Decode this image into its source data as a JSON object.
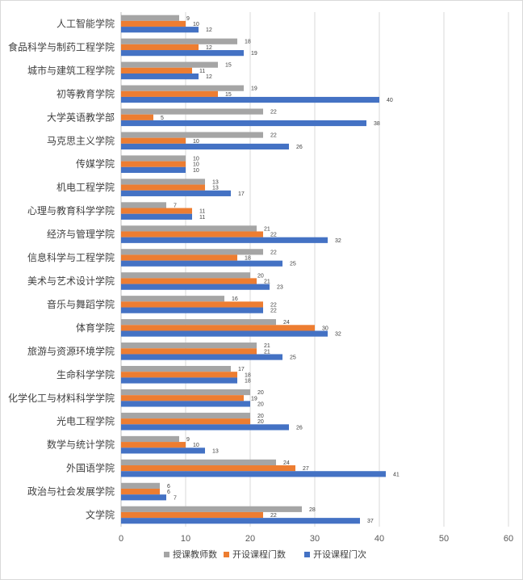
{
  "chart_data": {
    "type": "bar",
    "orientation": "horizontal",
    "categories": [
      "人工智能学院",
      "食品科学与制药工程学院",
      "城市与建筑工程学院",
      "初等教育学院",
      "大学英语教学部",
      "马克思主义学院",
      "传媒学院",
      "机电工程学院",
      "心理与教育科学学院",
      "经济与管理学院",
      "信息科学与工程学院",
      "美术与艺术设计学院",
      "音乐与舞蹈学院",
      "体育学院",
      "旅游与资源环境学院",
      "生命科学学院",
      "化学化工与材料科学学院",
      "光电工程学院",
      "数学与统计学院",
      "外国语学院",
      "政治与社会发展学院",
      "文学院"
    ],
    "series": [
      {
        "name": "授课教师数",
        "color": "#a5a5a5",
        "values": [
          9,
          18,
          15,
          19,
          22,
          22,
          10,
          13,
          7,
          21,
          22,
          20,
          16,
          24,
          21,
          17,
          20,
          20,
          9,
          24,
          6,
          28
        ]
      },
      {
        "name": "开设课程门数",
        "color": "#ed7d31",
        "values": [
          10,
          12,
          11,
          15,
          5,
          10,
          10,
          13,
          11,
          22,
          18,
          21,
          22,
          30,
          21,
          18,
          19,
          20,
          10,
          27,
          6,
          22
        ]
      },
      {
        "name": "开设课程门次",
        "color": "#4472c4",
        "values": [
          12,
          19,
          12,
          40,
          38,
          26,
          10,
          17,
          11,
          32,
          25,
          23,
          22,
          32,
          25,
          18,
          20,
          26,
          13,
          41,
          7,
          37
        ]
      }
    ],
    "x_ticks": [
      "0",
      "10",
      "20",
      "30",
      "40",
      "50",
      "60"
    ],
    "xlim": [
      0,
      60
    ],
    "grid": true,
    "legend_position": "bottom",
    "title": "",
    "xlabel": "",
    "ylabel": ""
  }
}
